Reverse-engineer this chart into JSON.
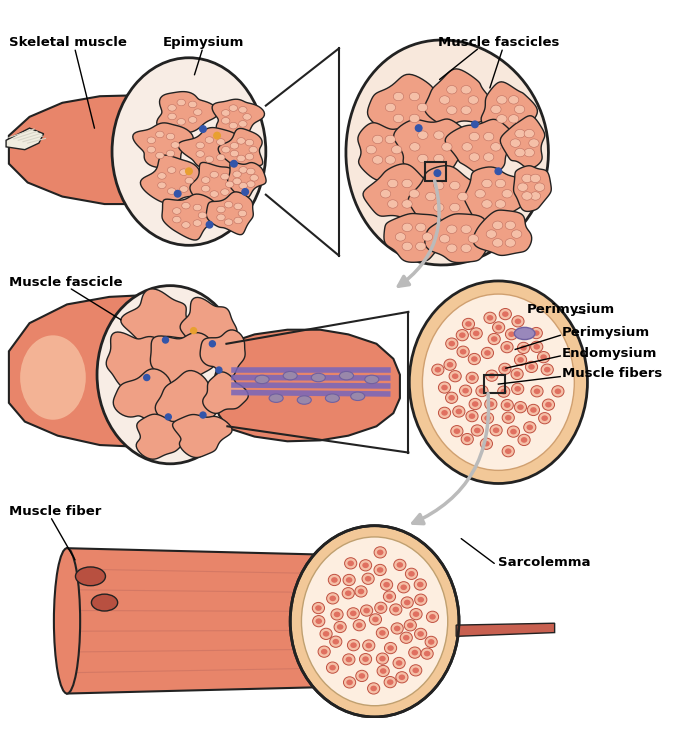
{
  "bg_color": "#ffffff",
  "muscle_salmon": "#E8856A",
  "muscle_light": "#EFA085",
  "muscle_dark": "#C96050",
  "muscle_pale": "#F5C0A8",
  "muscle_very_pale": "#FAE0D0",
  "outline_color": "#222222",
  "peri_color": "#F8E8DC",
  "endo_color": "#FDF0E8",
  "myo_color": "#E07060",
  "myo_outline": "#C05040",
  "blue_dot": "#3355AA",
  "orange_dot": "#E8A030",
  "purple_fiber": "#7766BB",
  "sarco_color": "#F2C898",
  "arrow_color": "#BBBBBB",
  "text_color": "#000000",
  "tendon_color": "#F0EDE0",
  "labels": {
    "skeletal_muscle": "Skeletal muscle",
    "epimysium": "Epimysium",
    "muscle_fascicles": "Muscle fascicles",
    "muscle_fascicle": "Muscle fascicle",
    "perimysium": "Perimysium",
    "endomysium": "Endomysium",
    "muscle_fibers": "Muscle fibers",
    "muscle_fiber": "Muscle fiber",
    "sarcolemma": "Sarcolemma"
  }
}
